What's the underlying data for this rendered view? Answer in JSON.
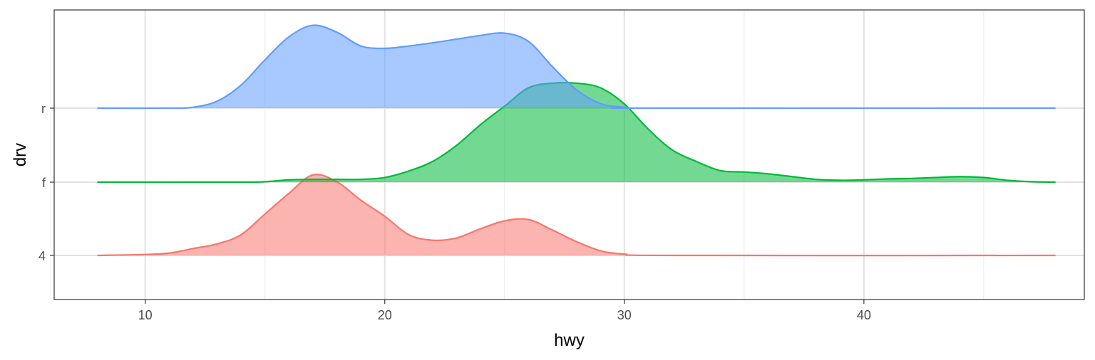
{
  "chart_data": {
    "type": "area",
    "chart_kind": "ridgeline-density",
    "title": "",
    "xlabel": "hwy",
    "ylabel": "drv",
    "xlim": [
      6.2,
      49.2
    ],
    "x_ticks": [
      10,
      20,
      30,
      40
    ],
    "x_minor_ticks": [
      15,
      25,
      35,
      45
    ],
    "categories": [
      "4",
      "f",
      "r"
    ],
    "ridge_scale": 1.35,
    "grid": true,
    "legend": "none",
    "series": [
      {
        "category": "4",
        "color": "#F8766D",
        "points": [
          [
            8,
            0
          ],
          [
            10,
            0.02
          ],
          [
            11,
            0.05
          ],
          [
            12,
            0.15
          ],
          [
            13,
            0.25
          ],
          [
            14,
            0.45
          ],
          [
            15,
            0.9
          ],
          [
            16,
            1.35
          ],
          [
            17,
            1.75
          ],
          [
            18,
            1.6
          ],
          [
            19,
            1.2
          ],
          [
            20,
            0.85
          ],
          [
            21,
            0.45
          ],
          [
            22,
            0.33
          ],
          [
            23,
            0.38
          ],
          [
            24,
            0.58
          ],
          [
            25,
            0.75
          ],
          [
            26,
            0.78
          ],
          [
            27,
            0.55
          ],
          [
            28,
            0.3
          ],
          [
            29,
            0.1
          ],
          [
            30,
            0.03
          ],
          [
            32,
            0
          ],
          [
            48,
            0
          ]
        ]
      },
      {
        "category": "f",
        "color": "#00BA38",
        "points": [
          [
            8,
            0
          ],
          [
            14,
            0
          ],
          [
            15,
            0.01
          ],
          [
            16,
            0.05
          ],
          [
            17,
            0.06
          ],
          [
            18,
            0.06
          ],
          [
            19,
            0.06
          ],
          [
            20,
            0.1
          ],
          [
            21,
            0.24
          ],
          [
            22,
            0.45
          ],
          [
            23,
            0.8
          ],
          [
            24,
            1.25
          ],
          [
            25,
            1.65
          ],
          [
            26,
            2.05
          ],
          [
            27,
            2.15
          ],
          [
            28,
            2.15
          ],
          [
            29,
            2.05
          ],
          [
            30,
            1.7
          ],
          [
            31,
            1.15
          ],
          [
            32,
            0.7
          ],
          [
            33,
            0.45
          ],
          [
            34,
            0.25
          ],
          [
            35,
            0.22
          ],
          [
            36,
            0.18
          ],
          [
            37,
            0.12
          ],
          [
            38,
            0.06
          ],
          [
            39,
            0.04
          ],
          [
            40,
            0.05
          ],
          [
            41,
            0.07
          ],
          [
            42,
            0.08
          ],
          [
            43,
            0.1
          ],
          [
            44,
            0.12
          ],
          [
            45,
            0.1
          ],
          [
            46,
            0.04
          ],
          [
            47,
            0.01
          ],
          [
            48,
            0
          ]
        ]
      },
      {
        "category": "r",
        "color": "#619CFF",
        "points": [
          [
            8,
            0
          ],
          [
            11,
            0
          ],
          [
            12,
            0.02
          ],
          [
            13,
            0.15
          ],
          [
            14,
            0.5
          ],
          [
            15,
            1.05
          ],
          [
            16,
            1.55
          ],
          [
            17,
            1.8
          ],
          [
            18,
            1.65
          ],
          [
            19,
            1.35
          ],
          [
            20,
            1.3
          ],
          [
            21,
            1.35
          ],
          [
            22,
            1.42
          ],
          [
            23,
            1.5
          ],
          [
            24,
            1.58
          ],
          [
            25,
            1.63
          ],
          [
            26,
            1.45
          ],
          [
            27,
            0.9
          ],
          [
            28,
            0.4
          ],
          [
            29,
            0.1
          ],
          [
            30,
            0.02
          ],
          [
            31,
            0
          ],
          [
            48,
            0
          ]
        ]
      }
    ]
  }
}
